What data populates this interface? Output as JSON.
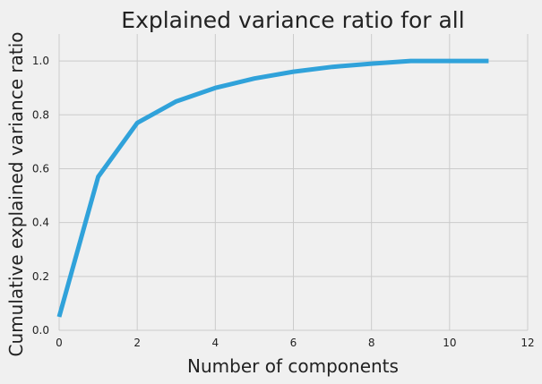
{
  "chart_data": {
    "type": "line",
    "title": "Explained variance ratio for all",
    "xlabel": "Number of components",
    "ylabel": "Cumulative explained variance ratio",
    "xlim": [
      0,
      12
    ],
    "ylim": [
      0,
      1.1
    ],
    "xticks": [
      0,
      2,
      4,
      6,
      8,
      10,
      12
    ],
    "yticks": [
      0.0,
      0.2,
      0.4,
      0.6,
      0.8,
      1.0
    ],
    "ytick_labels": [
      "0.0",
      "0.2",
      "0.4",
      "0.6",
      "0.8",
      "1.0"
    ],
    "grid": true,
    "colors": {
      "background": "#f0f0f0",
      "grid": "#cbcbcb",
      "line": "#30a2da"
    },
    "series": [
      {
        "x": [
          0,
          1,
          2,
          3,
          4,
          5,
          6,
          7,
          8,
          9,
          10,
          11
        ],
        "values": [
          0.05,
          0.57,
          0.77,
          0.85,
          0.9,
          0.935,
          0.96,
          0.978,
          0.99,
          1.0,
          1.0,
          1.0
        ]
      }
    ]
  }
}
